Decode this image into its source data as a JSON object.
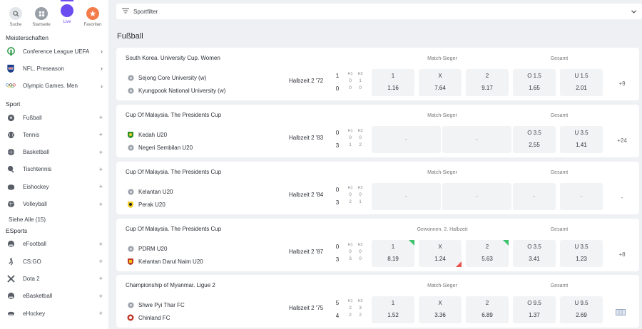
{
  "nav": {
    "items": [
      {
        "label": "Suche",
        "icon": "search-icon"
      },
      {
        "label": "Startseite",
        "icon": "grid-icon"
      },
      {
        "label": "Live",
        "icon": "live-icon"
      },
      {
        "label": "Favoriten",
        "icon": "star-icon"
      }
    ],
    "active_color": "#6b4cf0"
  },
  "sidebar": {
    "championships_title": "Meisterschaften",
    "championships": [
      {
        "label": "Conference League UEFA",
        "icon": "trophy-icon"
      },
      {
        "label": "NFL. Preseason",
        "icon": "nfl-icon"
      },
      {
        "label": "Olympic Games. Men",
        "icon": "olympic-rings-icon"
      }
    ],
    "sport_title": "Sport",
    "sports": [
      {
        "label": "Fußball",
        "icon": "soccer-ball-icon"
      },
      {
        "label": "Tennis",
        "icon": "tennis-ball-icon"
      },
      {
        "label": "Basketball",
        "icon": "basketball-icon"
      },
      {
        "label": "Tischtennis",
        "icon": "table-tennis-icon"
      },
      {
        "label": "Eishockey",
        "icon": "hockey-puck-icon"
      },
      {
        "label": "Volleyball",
        "icon": "volleyball-icon"
      }
    ],
    "see_all": "Siehe Alle (15)",
    "esports_title": "ESports",
    "esports": [
      {
        "label": "eFootball",
        "icon": "efootball-icon"
      },
      {
        "label": "CS:GO",
        "icon": "csgo-icon"
      },
      {
        "label": "Dota 2",
        "icon": "dota-icon"
      },
      {
        "label": "eBasketball",
        "icon": "ebasketball-icon"
      },
      {
        "label": "eHockey",
        "icon": "ehockey-icon"
      }
    ]
  },
  "filter": {
    "label": "Sportfilter"
  },
  "main": {
    "heading": "Fußball"
  },
  "matches": [
    {
      "league": "South Korea. University Cup. Women",
      "market1": "Match-Sieger",
      "market2": "Gesamt",
      "team1": "Sejong Core University (w)",
      "team2": "Kyungpook National University (w)",
      "period": "Halbzeit 2 '72",
      "score1": "1",
      "score2": "0",
      "h1_label": "H1",
      "h2_label": "H2",
      "h1": [
        "0",
        "0"
      ],
      "h2": [
        "1",
        "0"
      ],
      "odds": [
        {
          "label": "1",
          "value": "1.16"
        },
        {
          "label": "X",
          "value": "7.64"
        },
        {
          "label": "2",
          "value": "9.17"
        },
        {
          "label": "O 1.5",
          "value": "1.65"
        },
        {
          "label": "U 1.5",
          "value": "2.01"
        }
      ],
      "more": "+9"
    },
    {
      "league": "Cup Of Malaysia. The Presidents Cup",
      "market1": "Match-Sieger",
      "market2": "Gesamt",
      "team1": "Kedah U20",
      "team2": "Negeri Sembilan U20",
      "period": "Halbzeit 2 '83",
      "score1": "0",
      "score2": "3",
      "h1_label": "H1",
      "h2_label": "H2",
      "h1": [
        "0",
        "1"
      ],
      "h2": [
        "0",
        "2"
      ],
      "odds_dash": [
        "-",
        "-"
      ],
      "odds": [
        {
          "label": "O 3.5",
          "value": "2.55"
        },
        {
          "label": "U 3.5",
          "value": "1.41"
        }
      ],
      "more": "+24"
    },
    {
      "league": "Cup Of Malaysia. The Presidents Cup",
      "market1": "Match-Sieger",
      "market2": "Gesamt",
      "team1": "Kelantan U20",
      "team2": "Perak U20",
      "period": "Halbzeit 2 '84",
      "score1": "0",
      "score2": "3",
      "h1_label": "H1",
      "h2_label": "H2",
      "h1": [
        "0",
        "2"
      ],
      "h2": [
        "0",
        "1"
      ],
      "odds_dash": [
        "-",
        "-",
        "-",
        "-"
      ],
      "more": "-"
    },
    {
      "league": "Cup Of Malaysia. The Presidents Cup",
      "market1": "Gewonnen. 2. Halbzeit",
      "market2": "Gesamt",
      "team1": "PDRM U20",
      "team2": "Kelantan Darul Naim U20",
      "period": "Halbzeit 2 '87",
      "score1": "0",
      "score2": "3",
      "h1_label": "H1",
      "h2_label": "H2",
      "h1": [
        "0",
        "3"
      ],
      "h2": [
        "0",
        "0"
      ],
      "odds": [
        {
          "label": "1",
          "value": "8.19",
          "trend": "up"
        },
        {
          "label": "X",
          "value": "1.24",
          "trend": "down"
        },
        {
          "label": "2",
          "value": "5.63",
          "trend": "up"
        },
        {
          "label": "O 3.5",
          "value": "3.41"
        },
        {
          "label": "U 3.5",
          "value": "1.23"
        }
      ],
      "more": "+8"
    },
    {
      "league": "Championship of Myanmar. Ligue 2",
      "market1": "Match-Sieger",
      "market2": "Gesamt",
      "team1": "Shwe Pyi Thar FC",
      "team2": "Chinland FC",
      "period": "Halbzeit 2 '75",
      "score1": "5",
      "score2": "4",
      "h1_label": "H1",
      "h2_label": "H2",
      "h1": [
        "2",
        "2"
      ],
      "h2": [
        "3",
        "2"
      ],
      "odds": [
        {
          "label": "1",
          "value": "1.52"
        },
        {
          "label": "X",
          "value": "3.36"
        },
        {
          "label": "2",
          "value": "6.89"
        },
        {
          "label": "O 9.5",
          "value": "1.37"
        },
        {
          "label": "U 9.5",
          "value": "2.69"
        }
      ],
      "more_icon": "stats-icon"
    }
  ]
}
